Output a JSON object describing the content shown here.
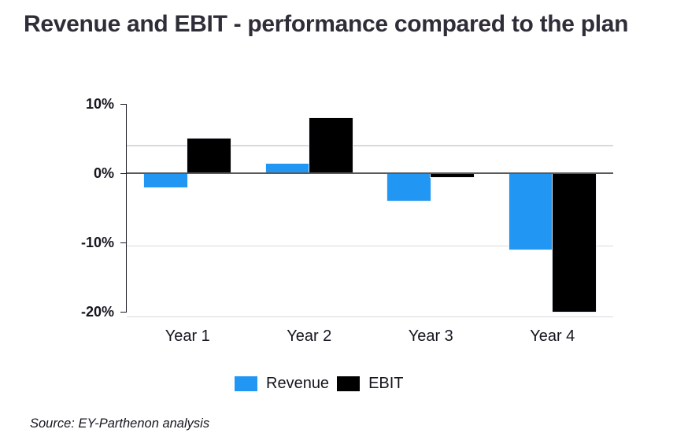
{
  "title": "Revenue and EBIT - performance compared to the plan",
  "source_note": "Source: EY-Parthenon analysis",
  "legend": [
    {
      "label": "Revenue",
      "color": "#2196F3"
    },
    {
      "label": "EBIT",
      "color": "#000000"
    }
  ],
  "colors": {
    "background": "#FFFFFF",
    "title_text": "#2E2E38",
    "axis_text": "#15151F",
    "gridline": "#D9D9D9",
    "zero_line": "#595959",
    "axis_line": "#1A1A24",
    "revenue_bar": "#2196F3",
    "ebit_bar": "#000000"
  },
  "chart_data": {
    "type": "bar",
    "title": "Revenue and EBIT - performance compared to the plan",
    "categories": [
      "Year 1",
      "Year 2",
      "Year 3",
      "Year 4"
    ],
    "series": [
      {
        "name": "Revenue",
        "color": "#2196F3",
        "values": [
          -2,
          1.4,
          -4,
          -11
        ]
      },
      {
        "name": "EBIT",
        "color": "#000000",
        "values": [
          5,
          8,
          -0.6,
          -20
        ]
      }
    ],
    "unit": "percent",
    "xlabel": "",
    "ylabel": "",
    "ylim": [
      -21.5,
      11.5
    ],
    "y_ticks": [
      {
        "value": 10,
        "label": "10%"
      },
      {
        "value": 0,
        "label": "0%"
      },
      {
        "value": -10,
        "label": "-10%"
      },
      {
        "value": -20,
        "label": "-20%"
      }
    ],
    "gridlines_pct": [
      4,
      -10.5,
      -20.7
    ],
    "grid": true,
    "legend_position": "bottom"
  }
}
